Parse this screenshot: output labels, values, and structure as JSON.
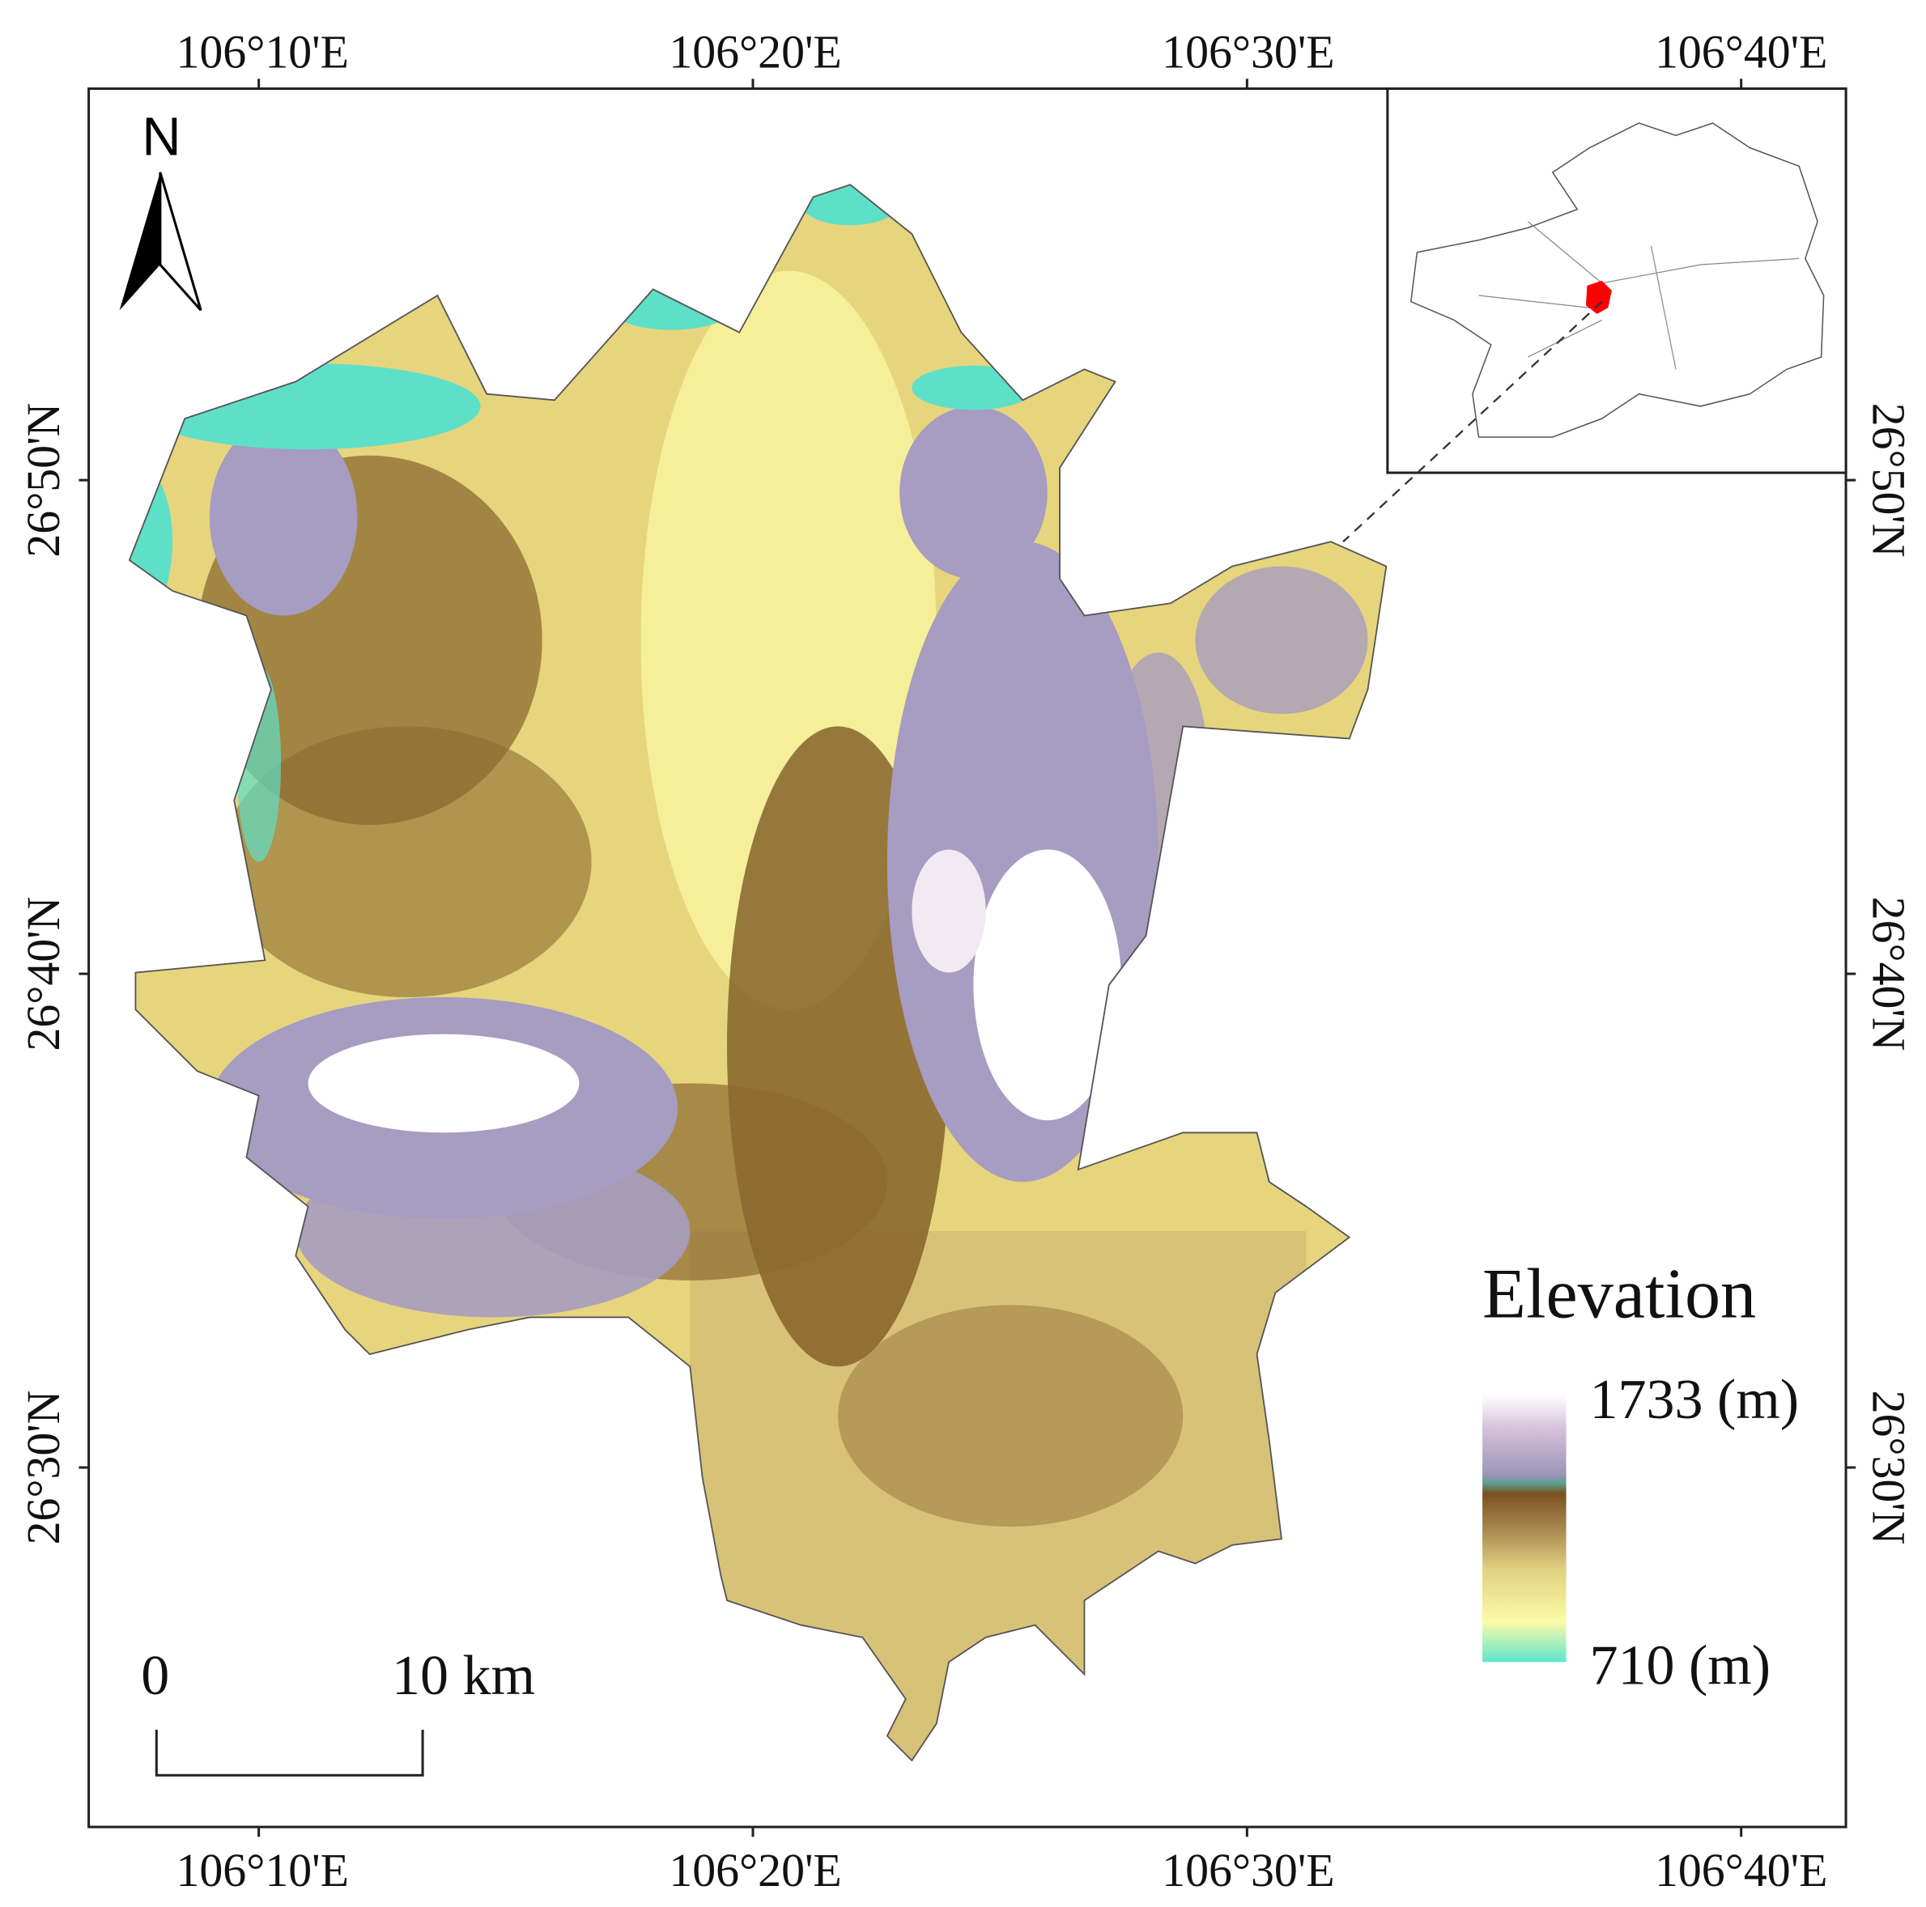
{
  "map": {
    "north_arrow": "N",
    "x_labels": [
      "106°10'E",
      "106°20'E",
      "106°30'E",
      "106°40'E"
    ],
    "y_labels": [
      "26°50'N",
      "26°40'N",
      "26°30'N"
    ],
    "legend": {
      "title": "Elevation",
      "max": "1733 (m)",
      "min": "710 (m)"
    },
    "scale_bar": {
      "start": "0",
      "end": "10 km"
    }
  }
}
